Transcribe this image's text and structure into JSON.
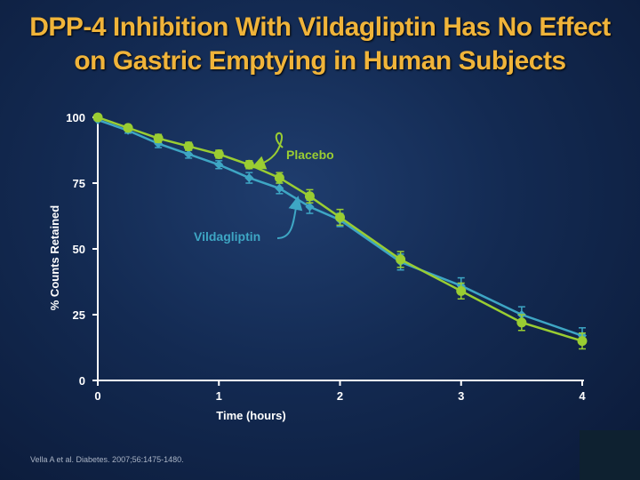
{
  "title": {
    "line1": "DPP-4 Inhibition With Vildagliptin Has No Effect",
    "line2": "on Gastric Emptying in Human Subjects"
  },
  "citation": "Vella A et al. Diabetes. 2007;56:1475-1480.",
  "colors": {
    "placebo": "#9acd32",
    "vildagliptin": "#3ea6c4",
    "title": "#f0b43a",
    "axis": "#ffffff"
  },
  "chart_data": {
    "type": "line",
    "xlabel": "Time (hours)",
    "ylabel": "% Counts Retained",
    "xlim": [
      0,
      4
    ],
    "ylim": [
      0,
      100
    ],
    "x_ticks": [
      "0",
      "1",
      "2",
      "3",
      "4"
    ],
    "y_ticks": [
      "0",
      "25",
      "50",
      "75",
      "100"
    ],
    "grid": false,
    "series": [
      {
        "name": "Placebo",
        "color": "#9acd32",
        "x": [
          0,
          0.25,
          0.5,
          0.75,
          1.0,
          1.25,
          1.5,
          1.75,
          2.0,
          2.5,
          3.0,
          3.5,
          4.0
        ],
        "y": [
          100,
          96,
          92,
          89,
          86,
          82,
          77,
          70,
          62,
          46,
          34,
          22,
          15
        ],
        "err": [
          0,
          1,
          1.5,
          1.5,
          1.5,
          1.5,
          2,
          2.5,
          3,
          3,
          3,
          3,
          3
        ]
      },
      {
        "name": "Vildagliptin",
        "color": "#3ea6c4",
        "x": [
          0,
          0.25,
          0.5,
          0.75,
          1.0,
          1.25,
          1.5,
          1.75,
          2.0,
          2.5,
          3.0,
          3.5,
          4.0
        ],
        "y": [
          99,
          95,
          90,
          86,
          82,
          77,
          73,
          66,
          61,
          45,
          36,
          25,
          17
        ],
        "err": [
          0,
          1,
          1.5,
          1.5,
          1.5,
          2,
          2,
          2.5,
          2.5,
          3,
          3,
          3,
          3
        ]
      }
    ],
    "annotations": [
      {
        "text": "Placebo",
        "series": "Placebo"
      },
      {
        "text": "Vildagliptin",
        "series": "Vildagliptin"
      }
    ]
  }
}
